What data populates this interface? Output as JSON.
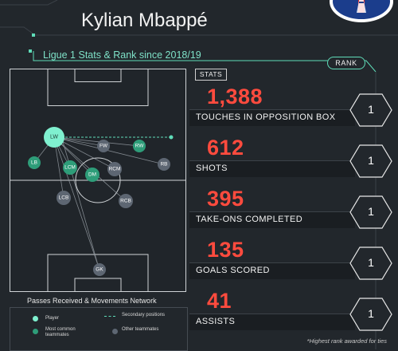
{
  "header": {
    "player_name": "Kylian Mbappé",
    "subtitle": "Ligue 1 Stats & Rank since 2018/19",
    "club_logo": "psg-crest-icon"
  },
  "colors": {
    "background": "#22272c",
    "accent_teal": "#5fdcb8",
    "stat_red": "#ff4b3e",
    "node_green": "#2e9d79",
    "node_grey": "#5d6672",
    "player_node": "#7ff0cf"
  },
  "pitch": {
    "caption": "Passes Received & Movements Network",
    "nodes": {
      "lw": "LW",
      "fw": "FW",
      "rw": "RW",
      "lb": "LB",
      "lcm": "LCM",
      "rcm": "RCM",
      "dm": "DM",
      "rb": "RB",
      "lcb": "LCB",
      "rcb": "RCB",
      "gk": "GK"
    }
  },
  "legend": {
    "player": "Player",
    "secondary": "Secondary positions",
    "common": "Most common teammates",
    "other": "Other teammates"
  },
  "stats_header": "STATS",
  "rank_header": "RANK",
  "stats": [
    {
      "value": "1,388",
      "label": "TOUCHES IN OPPOSITION BOX",
      "rank": "1"
    },
    {
      "value": "612",
      "label": "SHOTS",
      "rank": "1"
    },
    {
      "value": "395",
      "label": "TAKE-ONS COMPLETED",
      "rank": "1"
    },
    {
      "value": "135",
      "label": "GOALS SCORED",
      "rank": "1"
    },
    {
      "value": "41",
      "label": "ASSISTS",
      "rank": "1"
    }
  ],
  "footnote": "*Highest rank awarded for ties"
}
